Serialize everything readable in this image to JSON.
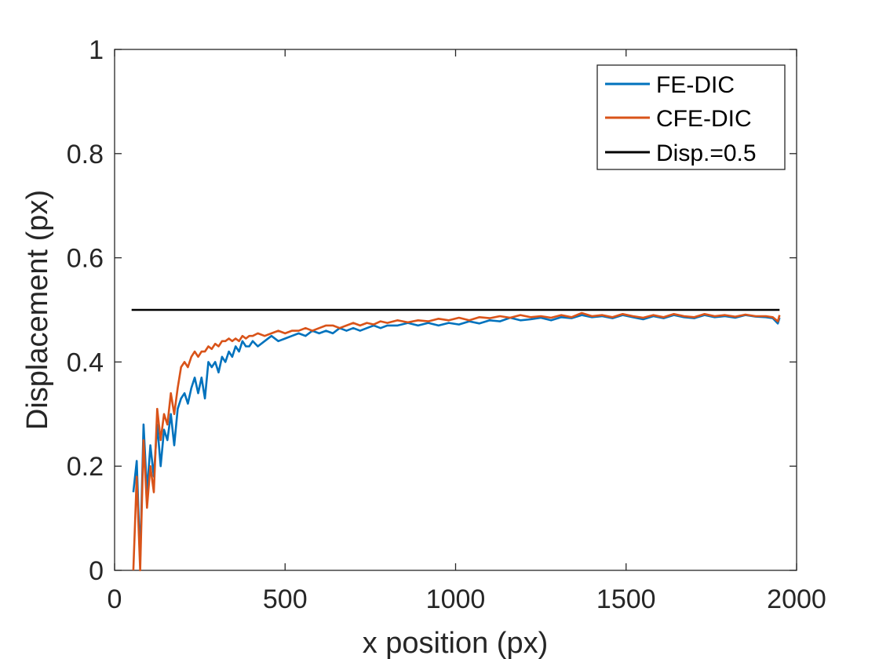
{
  "chart_data": {
    "type": "line",
    "title": "",
    "xlabel": "x position (px)",
    "ylabel": "Displacement (px)",
    "xlim": [
      0,
      2000
    ],
    "ylim": [
      0,
      1
    ],
    "xticks": [
      0,
      500,
      1000,
      1500,
      2000
    ],
    "xtick_labels": [
      "0",
      "500",
      "1000",
      "1500",
      "2000"
    ],
    "yticks": [
      0,
      0.2,
      0.4,
      0.6,
      0.8,
      1
    ],
    "ytick_labels": [
      "0",
      "0.2",
      "0.4",
      "0.6",
      "0.8",
      "1"
    ],
    "grid": false,
    "legend_position": "top-right",
    "series": [
      {
        "name": "FE-DIC",
        "color": "#0072BD",
        "x": [
          55,
          65,
          75,
          85,
          95,
          105,
          115,
          125,
          135,
          145,
          155,
          165,
          175,
          185,
          195,
          205,
          215,
          225,
          235,
          245,
          255,
          265,
          275,
          285,
          295,
          305,
          315,
          325,
          335,
          345,
          355,
          365,
          375,
          385,
          395,
          405,
          420,
          440,
          460,
          480,
          500,
          520,
          540,
          560,
          580,
          600,
          620,
          640,
          660,
          680,
          700,
          720,
          740,
          760,
          780,
          800,
          830,
          860,
          890,
          920,
          950,
          980,
          1010,
          1040,
          1070,
          1100,
          1130,
          1160,
          1190,
          1220,
          1250,
          1280,
          1310,
          1340,
          1370,
          1400,
          1430,
          1460,
          1490,
          1520,
          1550,
          1580,
          1610,
          1640,
          1670,
          1700,
          1730,
          1760,
          1790,
          1820,
          1850,
          1880,
          1910,
          1930,
          1945,
          1950
        ],
        "y": [
          0.15,
          0.21,
          0.02,
          0.28,
          0.15,
          0.24,
          0.18,
          0.28,
          0.2,
          0.27,
          0.25,
          0.3,
          0.24,
          0.31,
          0.33,
          0.34,
          0.32,
          0.35,
          0.37,
          0.34,
          0.37,
          0.33,
          0.4,
          0.39,
          0.4,
          0.38,
          0.41,
          0.4,
          0.42,
          0.41,
          0.43,
          0.42,
          0.44,
          0.43,
          0.43,
          0.44,
          0.43,
          0.44,
          0.45,
          0.44,
          0.445,
          0.45,
          0.455,
          0.45,
          0.46,
          0.455,
          0.46,
          0.455,
          0.465,
          0.46,
          0.465,
          0.46,
          0.465,
          0.47,
          0.465,
          0.47,
          0.47,
          0.475,
          0.47,
          0.475,
          0.47,
          0.475,
          0.472,
          0.478,
          0.474,
          0.48,
          0.478,
          0.485,
          0.48,
          0.482,
          0.485,
          0.48,
          0.486,
          0.484,
          0.49,
          0.486,
          0.488,
          0.484,
          0.49,
          0.486,
          0.482,
          0.488,
          0.484,
          0.49,
          0.486,
          0.484,
          0.49,
          0.486,
          0.488,
          0.485,
          0.49,
          0.487,
          0.486,
          0.484,
          0.474,
          0.485
        ]
      },
      {
        "name": "CFE-DIC",
        "color": "#D95319",
        "x": [
          55,
          65,
          75,
          85,
          95,
          105,
          115,
          125,
          135,
          145,
          155,
          165,
          175,
          185,
          195,
          205,
          215,
          225,
          235,
          245,
          255,
          265,
          275,
          285,
          295,
          305,
          315,
          325,
          335,
          345,
          355,
          365,
          375,
          385,
          395,
          405,
          420,
          440,
          460,
          480,
          500,
          520,
          540,
          560,
          580,
          600,
          620,
          640,
          660,
          680,
          700,
          720,
          740,
          760,
          780,
          800,
          830,
          860,
          890,
          920,
          950,
          980,
          1010,
          1040,
          1070,
          1100,
          1130,
          1160,
          1190,
          1220,
          1250,
          1280,
          1310,
          1340,
          1370,
          1400,
          1430,
          1460,
          1490,
          1520,
          1550,
          1580,
          1610,
          1640,
          1670,
          1700,
          1730,
          1760,
          1790,
          1820,
          1850,
          1880,
          1910,
          1930,
          1945,
          1950
        ],
        "y": [
          0.0,
          0.18,
          0.0,
          0.25,
          0.12,
          0.2,
          0.15,
          0.31,
          0.25,
          0.3,
          0.28,
          0.34,
          0.3,
          0.35,
          0.39,
          0.4,
          0.39,
          0.41,
          0.42,
          0.41,
          0.42,
          0.42,
          0.43,
          0.425,
          0.435,
          0.43,
          0.44,
          0.44,
          0.445,
          0.44,
          0.445,
          0.44,
          0.45,
          0.445,
          0.45,
          0.45,
          0.455,
          0.45,
          0.455,
          0.46,
          0.455,
          0.46,
          0.46,
          0.465,
          0.46,
          0.465,
          0.47,
          0.47,
          0.465,
          0.47,
          0.475,
          0.47,
          0.475,
          0.472,
          0.478,
          0.475,
          0.48,
          0.476,
          0.48,
          0.478,
          0.483,
          0.48,
          0.485,
          0.48,
          0.486,
          0.484,
          0.488,
          0.485,
          0.49,
          0.486,
          0.488,
          0.485,
          0.49,
          0.486,
          0.494,
          0.488,
          0.49,
          0.486,
          0.492,
          0.488,
          0.485,
          0.49,
          0.486,
          0.492,
          0.488,
          0.486,
          0.492,
          0.488,
          0.49,
          0.487,
          0.491,
          0.488,
          0.488,
          0.486,
          0.478,
          0.49
        ]
      },
      {
        "name": "Disp.=0.5",
        "color": "#000000",
        "x": [
          50,
          1950
        ],
        "y": [
          0.5,
          0.5
        ]
      }
    ]
  }
}
